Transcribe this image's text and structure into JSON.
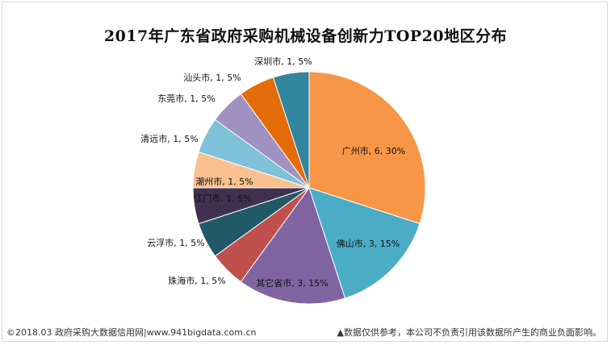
{
  "chart_data": {
    "type": "pie",
    "title": "2017年广东省政府采购机械设备创新力TOP20地区分布",
    "slices": [
      {
        "label": "广州市, 6, 30%",
        "value": 6,
        "percent": 30,
        "color": "#f79646"
      },
      {
        "label": "佛山市, 3, 15%",
        "value": 3,
        "percent": 15,
        "color": "#4bacc6"
      },
      {
        "label": "其它省市, 3, 15%",
        "value": 3,
        "percent": 15,
        "color": "#8064a2"
      },
      {
        "label": "珠海市, 1, 5%",
        "value": 1,
        "percent": 5,
        "color": "#c0504d"
      },
      {
        "label": "云浮市, 1, 5%",
        "value": 1,
        "percent": 5,
        "color": "#215968"
      },
      {
        "label": "江门市, 1, 5%",
        "value": 1,
        "percent": 5,
        "color": "#403151"
      },
      {
        "label": "潮州市, 1, 5%",
        "value": 1,
        "percent": 5,
        "color": "#fac090"
      },
      {
        "label": "清远市, 1, 5%",
        "value": 1,
        "percent": 5,
        "color": "#7ec1d8"
      },
      {
        "label": "东莞市, 1, 5%",
        "value": 1,
        "percent": 5,
        "color": "#a092c0"
      },
      {
        "label": "汕头市, 1, 5%",
        "value": 1,
        "percent": 5,
        "color": "#e36c09"
      },
      {
        "label": "深圳市, 1, 5%",
        "value": 1,
        "percent": 5,
        "color": "#31859c"
      }
    ]
  },
  "footer": {
    "source": "©2018.03 政府采购大数据信用网|www.941bigdata.com.cn",
    "disclaimer": "▲数据仅供参考，本公司不负责引用该数据所产生的商业负面影响。"
  }
}
